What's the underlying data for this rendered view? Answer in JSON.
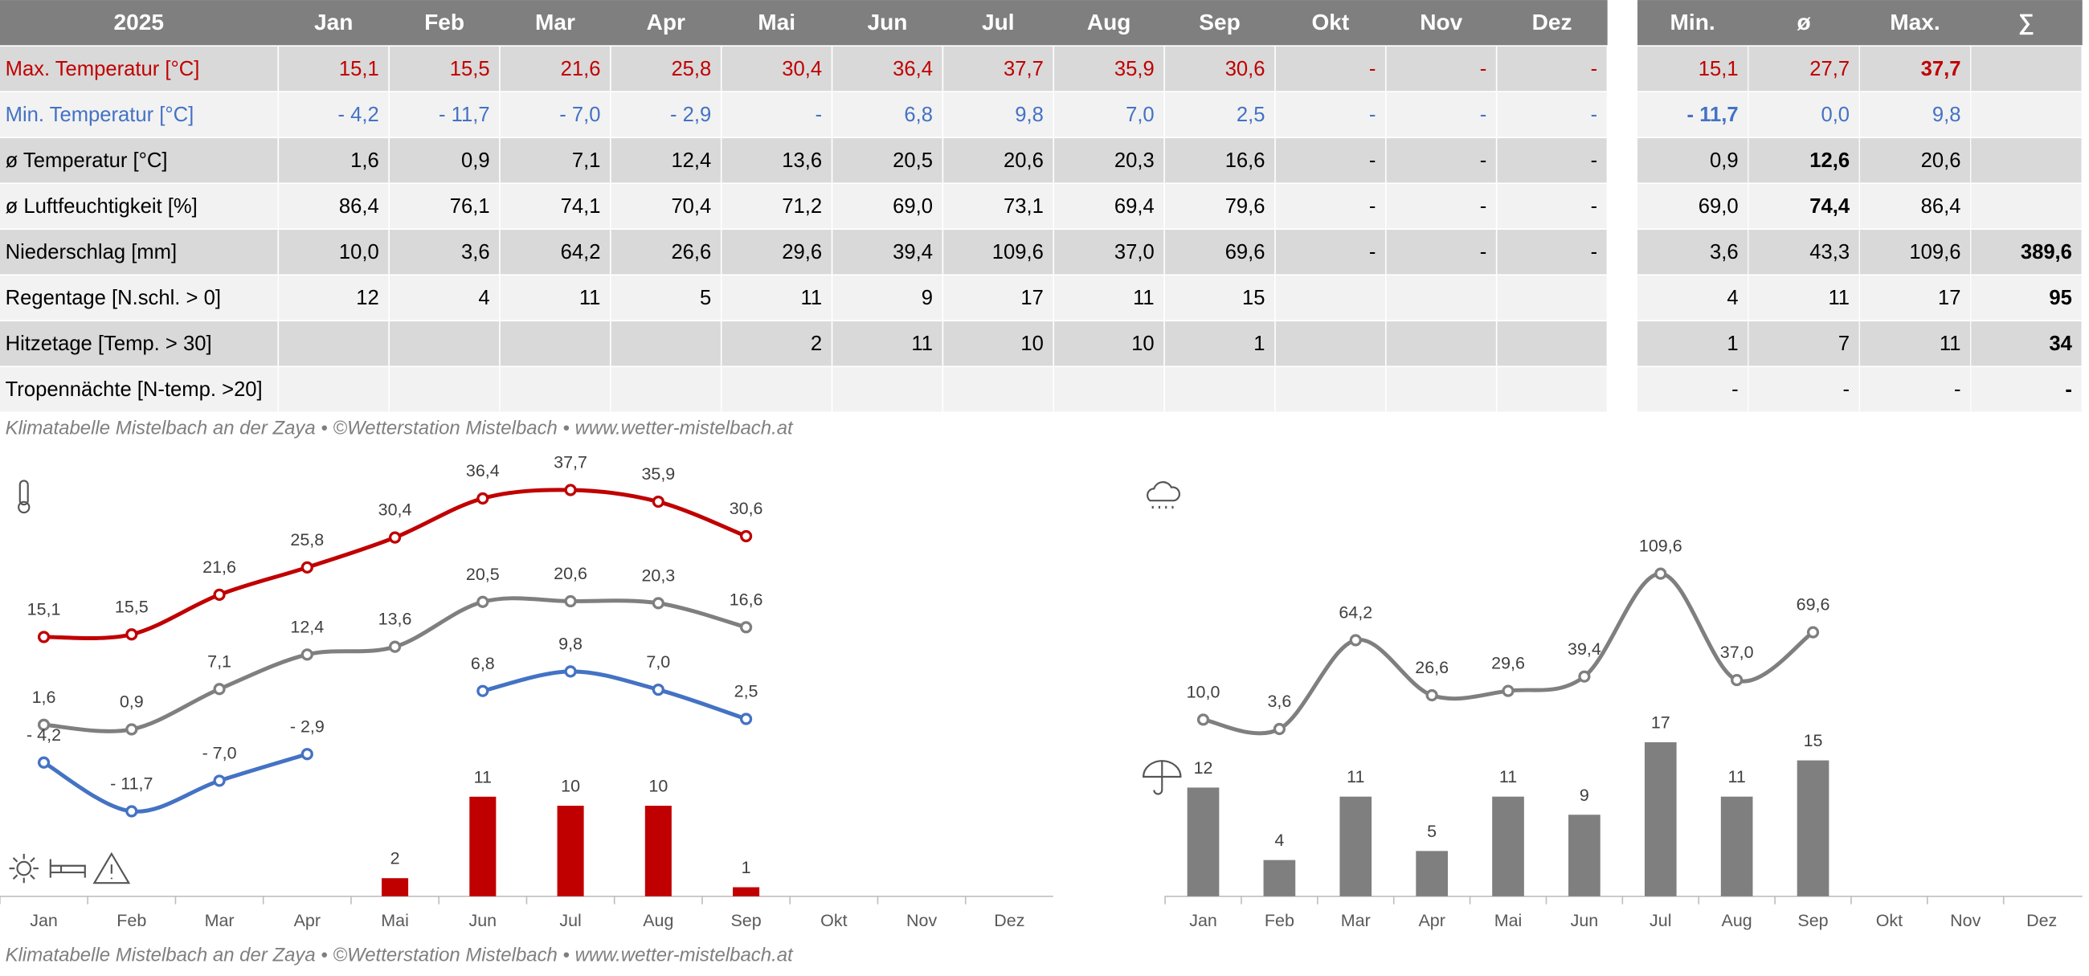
{
  "table": {
    "header": [
      "2025",
      "Jan",
      "Feb",
      "Mar",
      "Apr",
      "Mai",
      "Jun",
      "Jul",
      "Aug",
      "Sep",
      "Okt",
      "Nov",
      "Dez"
    ],
    "summary_header": [
      "Min.",
      "ø",
      "Max.",
      "∑"
    ],
    "rows": [
      {
        "label": "Max. Temperatur [°C]",
        "cells": [
          "15,1",
          "15,5",
          "21,6",
          "25,8",
          "30,4",
          "36,4",
          "37,7",
          "35,9",
          "30,6",
          "-",
          "-",
          "-"
        ],
        "summary": [
          "15,1",
          "27,7",
          "37,7",
          null
        ]
      },
      {
        "label": "Min. Temperatur [°C]",
        "cells": [
          "- 4,2",
          "- 11,7",
          "- 7,0",
          "- 2,9",
          "-",
          "6,8",
          "9,8",
          "7,0",
          "2,5",
          "-",
          "-",
          "-"
        ],
        "summary": [
          "- 11,7",
          "0,0",
          "9,8",
          null
        ]
      },
      {
        "label": "ø Temperatur [°C]",
        "cells": [
          "1,6",
          "0,9",
          "7,1",
          "12,4",
          "13,6",
          "20,5",
          "20,6",
          "20,3",
          "16,6",
          "-",
          "-",
          "-"
        ],
        "summary": [
          "0,9",
          "12,6",
          "20,6",
          null
        ]
      },
      {
        "label": "ø Luftfeuchtigkeit [%]",
        "cells": [
          "86,4",
          "76,1",
          "74,1",
          "70,4",
          "71,2",
          "69,0",
          "73,1",
          "69,4",
          "79,6",
          "-",
          "-",
          "-"
        ],
        "summary": [
          "69,0",
          "74,4",
          "86,4",
          null
        ]
      },
      {
        "label": "Niederschlag [mm]",
        "cells": [
          "10,0",
          "3,6",
          "64,2",
          "26,6",
          "29,6",
          "39,4",
          "109,6",
          "37,0",
          "69,6",
          "-",
          "-",
          "-"
        ],
        "summary": [
          "3,6",
          "43,3",
          "109,6",
          "389,6"
        ]
      },
      {
        "label": "Regentage [N.schl. > 0]",
        "cells": [
          "12",
          "4",
          "11",
          "5",
          "11",
          "9",
          "17",
          "11",
          "15",
          null,
          null,
          null
        ],
        "summary": [
          "4",
          "11",
          "17",
          "95"
        ]
      },
      {
        "label": "Hitzetage [Temp. > 30]",
        "cells": [
          null,
          null,
          null,
          null,
          "2",
          "11",
          "10",
          "10",
          "1",
          null,
          null,
          null
        ],
        "summary": [
          "1",
          "7",
          "11",
          "34"
        ]
      },
      {
        "label": "Tropennächte [N-temp. >20]",
        "cells": [
          null,
          null,
          null,
          null,
          null,
          null,
          null,
          null,
          null,
          null,
          null,
          null
        ],
        "summary": [
          "-",
          "-",
          "-",
          "-"
        ]
      }
    ],
    "footer": "Klimatabelle Mistelbach an der Zaya  •  ©Wetterstation Mistelbach  •  www.wetter-mistelbach.at"
  },
  "chart_data": [
    {
      "type": "combo",
      "categories": [
        "Jan",
        "Feb",
        "Mar",
        "Apr",
        "Mai",
        "Jun",
        "Jul",
        "Aug",
        "Sep",
        "Okt",
        "Nov",
        "Dez"
      ],
      "series": [
        {
          "type": "line",
          "color": "#c00000",
          "values": [
            15.1,
            15.5,
            21.6,
            25.8,
            30.4,
            36.4,
            37.7,
            35.9,
            30.6,
            null,
            null,
            null
          ],
          "value_labels": [
            "15,1",
            "15,5",
            "21,6",
            "25,8",
            "30,4",
            "36,4",
            "37,7",
            "35,9",
            "30,6",
            null,
            null,
            null
          ]
        },
        {
          "type": "line",
          "color": "#7f7f7f",
          "values": [
            1.6,
            0.9,
            7.1,
            12.4,
            13.6,
            20.5,
            20.6,
            20.3,
            16.6,
            null,
            null,
            null
          ],
          "value_labels": [
            "1,6",
            "0,9",
            "7,1",
            "12,4",
            "13,6",
            "20,5",
            "20,6",
            "20,3",
            "16,6",
            null,
            null,
            null
          ]
        },
        {
          "type": "line",
          "color": "#4472c4",
          "values": [
            -4.2,
            -11.7,
            -7.0,
            -2.9,
            null,
            6.8,
            9.8,
            7.0,
            2.5,
            null,
            null,
            null
          ],
          "value_labels": [
            "- 4,2",
            "- 11,7",
            "- 7,0",
            "- 2,9",
            null,
            "6,8",
            "9,8",
            "7,0",
            "2,5",
            null,
            null,
            null
          ]
        },
        {
          "type": "bar",
          "color": "#c00000",
          "values": [
            null,
            null,
            null,
            null,
            2,
            11,
            10,
            10,
            1,
            null,
            null,
            null
          ]
        }
      ]
    },
    {
      "type": "combo",
      "categories": [
        "Jan",
        "Feb",
        "Mar",
        "Apr",
        "Mai",
        "Jun",
        "Jul",
        "Aug",
        "Sep",
        "Okt",
        "Nov",
        "Dez"
      ],
      "series": [
        {
          "type": "line",
          "color": "#7f7f7f",
          "values": [
            10.0,
            3.6,
            64.2,
            26.6,
            29.6,
            39.4,
            109.6,
            37.0,
            69.6,
            null,
            null,
            null
          ],
          "value_labels": [
            "10,0",
            "3,6",
            "64,2",
            "26,6",
            "29,6",
            "39,4",
            "109,6",
            "37,0",
            "69,6",
            null,
            null,
            null
          ]
        },
        {
          "type": "bar",
          "color": "#7f7f7f",
          "values": [
            12,
            4,
            11,
            5,
            11,
            9,
            17,
            11,
            15,
            null,
            null,
            null
          ]
        }
      ]
    }
  ]
}
